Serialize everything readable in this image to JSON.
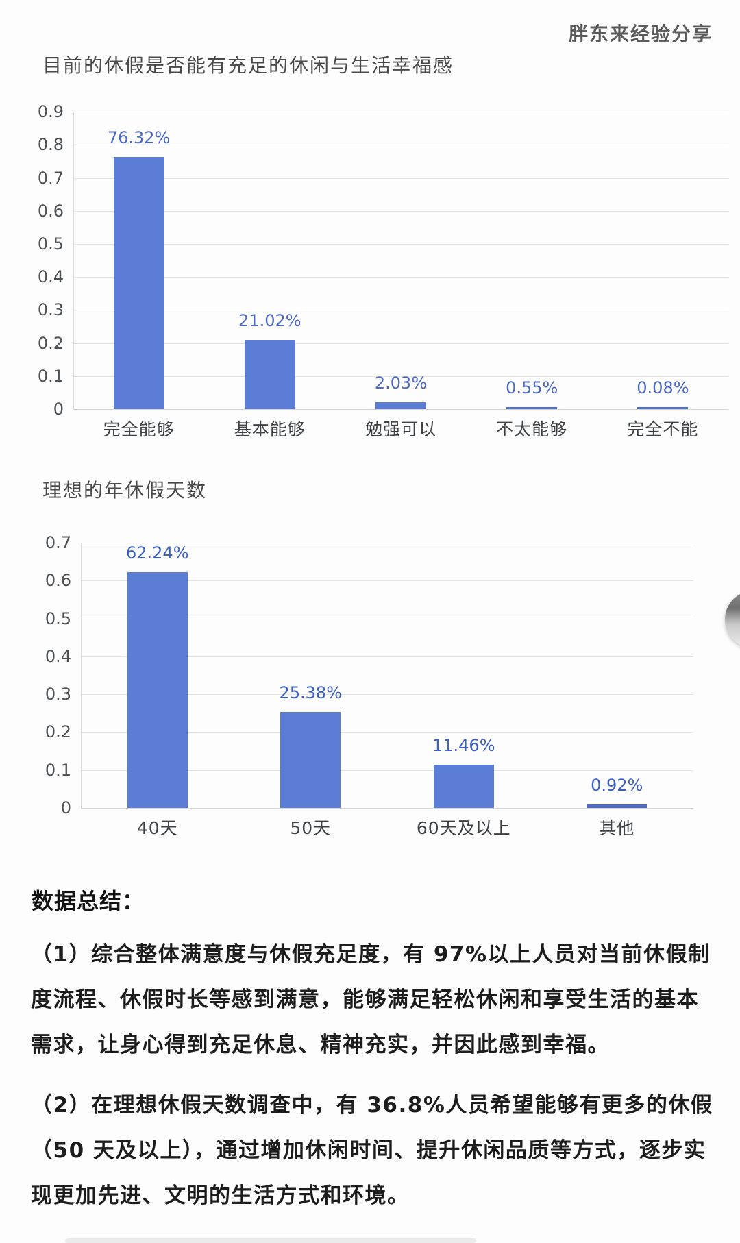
{
  "header": {
    "watermark": "胖东来经验分享"
  },
  "chart_data": [
    {
      "type": "bar",
      "title": "目前的休假是否能有充足的休闲与生活幸福感",
      "categories": [
        "完全能够",
        "基本能够",
        "勉强可以",
        "不太能够",
        "完全不能"
      ],
      "values": [
        0.7632,
        0.2102,
        0.0203,
        0.0055,
        0.0008
      ],
      "value_labels": [
        "76.32%",
        "21.02%",
        "2.03%",
        "0.55%",
        "0.08%"
      ],
      "ylim": [
        0,
        0.9
      ],
      "yticks": [
        "0.9",
        "0.8",
        "0.7",
        "0.6",
        "0.5",
        "0.4",
        "0.3",
        "0.2",
        "0.1",
        "0"
      ],
      "grid": true,
      "legend": "none",
      "bar_color": "#5b7dd6",
      "small_bar_color": "#4f6cc0",
      "label_color": "#4b69c4"
    },
    {
      "type": "bar",
      "title": "理想的年休假天数",
      "categories": [
        "40天",
        "50天",
        "60天及以上",
        "其他"
      ],
      "values": [
        0.6224,
        0.2538,
        0.1146,
        0.0092
      ],
      "value_labels": [
        "62.24%",
        "25.38%",
        "11.46%",
        "0.92%"
      ],
      "ylim": [
        0,
        0.7
      ],
      "yticks": [
        "0.7",
        "0.6",
        "0.5",
        "0.4",
        "0.3",
        "0.2",
        "0.1",
        "0"
      ],
      "grid": true,
      "legend": "none",
      "bar_color": "#5b7dd6",
      "small_bar_color": "#4f6cc0",
      "label_color": "#3a5fc0"
    }
  ],
  "summary": {
    "title": "数据总结：",
    "paragraphs": [
      "（1）综合整体满意度与休假充足度，有 97%以上人员对当前休假制度流程、休假时长等感到满意，能够满足轻松休闲和享受生活的基本需求，让身心得到充足休息、精神充实，并因此感到幸福。",
      "（2）在理想休假天数调查中，有 36.8%人员希望能够有更多的休假（50 天及以上），通过增加休闲时间、提升休闲品质等方式，逐步实现更加先进、文明的生活方式和环境。"
    ]
  },
  "artifacts": {
    "right_edge_clipped_image": "partial circular grayscale image clipped at right edge",
    "bottom_cutoff_text_hint": "top edge of next text line slightly visible at bottom"
  }
}
